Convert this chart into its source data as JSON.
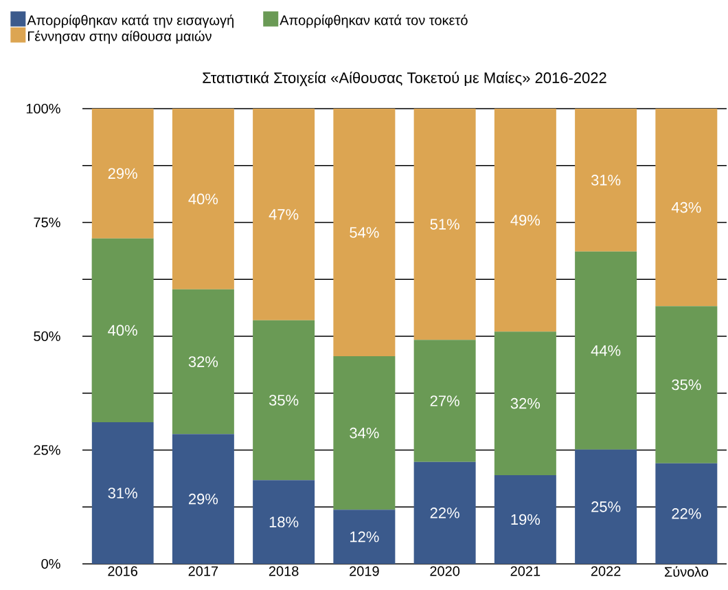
{
  "chart_data": {
    "type": "bar",
    "stacked": true,
    "title": "Στατιστικά Στοιχεία «Αίθουσας Τοκετού με Μαίες» 2016-2022",
    "categories": [
      "2016",
      "2017",
      "2018",
      "2019",
      "2020",
      "2021",
      "2022",
      "Σύνολο"
    ],
    "series": [
      {
        "name": "Απορρίφθηκαν κατά την εισαγωγή",
        "color": "#3b5a8c",
        "values": [
          31.1,
          28.5,
          18.4,
          11.9,
          22.4,
          19.5,
          25.1,
          22.1
        ],
        "value_labels": [
          "31%",
          "29%",
          "18%",
          "12%",
          "22%",
          "19%",
          "25%",
          "22%"
        ]
      },
      {
        "name": "Απορρίφθηκαν κατά τον τοκετό",
        "color": "#6a9a55",
        "values": [
          40.4,
          31.8,
          35.1,
          33.7,
          26.8,
          31.5,
          43.5,
          34.5
        ],
        "value_labels": [
          "40%",
          "32%",
          "35%",
          "34%",
          "27%",
          "32%",
          "44%",
          "35%"
        ]
      },
      {
        "name": "Γέννησαν στην αίθουσα μαιών",
        "color": "#dca552",
        "values": [
          28.5,
          39.7,
          46.5,
          54.4,
          50.8,
          49.0,
          31.4,
          43.4
        ],
        "value_labels": [
          "29%",
          "40%",
          "47%",
          "54%",
          "51%",
          "49%",
          "31%",
          "43%"
        ]
      }
    ],
    "ylim": [
      0,
      100
    ],
    "yticks": [
      {
        "value": 0,
        "label": "0%"
      },
      {
        "value": 12.5,
        "label": null
      },
      {
        "value": 25,
        "label": "25%"
      },
      {
        "value": 37.5,
        "label": null
      },
      {
        "value": 50,
        "label": "50%"
      },
      {
        "value": 62.5,
        "label": null
      },
      {
        "value": 75,
        "label": "75%"
      },
      {
        "value": 87.5,
        "label": null
      },
      {
        "value": 100,
        "label": "100%"
      }
    ],
    "grid": "y",
    "legend": "top"
  }
}
